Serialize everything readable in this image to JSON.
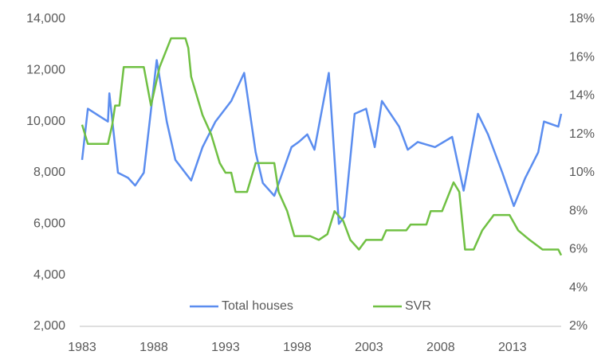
{
  "chart_data": {
    "type": "line",
    "series": [
      {
        "name": "Total houses",
        "color": "#5b8def",
        "axis": "y",
        "x": [
          1983.0,
          1983.4,
          1984.8,
          1984.9,
          1985.5,
          1986.2,
          1986.7,
          1987.3,
          1988.2,
          1988.9,
          1989.5,
          1990.6,
          1991.4,
          1992.3,
          1993.4,
          1994.3,
          1995.1,
          1995.6,
          1996.4,
          1997.6,
          1998.1,
          1998.7,
          1999.2,
          2000.2,
          2000.9,
          2001.3,
          2002.0,
          2002.8,
          2003.4,
          2003.9,
          2005.1,
          2005.7,
          2006.4,
          2007.6,
          2008.8,
          2009.6,
          2010.6,
          2011.3,
          2012.3,
          2013.1,
          2013.9,
          2014.8,
          2015.2,
          2016.2,
          2016.4
        ],
        "values": [
          8500,
          10500,
          10000,
          11100,
          8000,
          7800,
          7500,
          8000,
          12400,
          10000,
          8500,
          7700,
          9000,
          10000,
          10800,
          11900,
          8800,
          7600,
          7100,
          9000,
          9200,
          9500,
          8900,
          11900,
          6000,
          6300,
          10300,
          10500,
          9000,
          10800,
          9800,
          8900,
          9200,
          9000,
          9400,
          7300,
          10300,
          9500,
          8000,
          6700,
          7800,
          8800,
          10000,
          9800,
          10300
        ]
      },
      {
        "name": "SVR",
        "color": "#70c043",
        "axis": "y2",
        "x": [
          1983.0,
          1983.4,
          1984.8,
          1985.1,
          1985.3,
          1985.6,
          1985.9,
          1987.3,
          1987.8,
          1988.4,
          1989.2,
          1990.2,
          1990.4,
          1990.6,
          1991.4,
          1992.0,
          1992.6,
          1993.0,
          1993.4,
          1993.7,
          1994.5,
          1995.1,
          1996.4,
          1996.7,
          1997.3,
          1997.8,
          1998.9,
          1999.5,
          2000.1,
          2000.6,
          2001.2,
          2001.7,
          2002.3,
          2002.8,
          2003.9,
          2004.2,
          2005.6,
          2005.9,
          2007.0,
          2007.3,
          2008.1,
          2008.9,
          2009.3,
          2009.7,
          2010.3,
          2010.9,
          2011.7,
          2012.8,
          2013.4,
          2014.2,
          2015.1,
          2016.2,
          2016.4
        ],
        "values": [
          12.5,
          11.5,
          11.5,
          12.5,
          13.5,
          13.5,
          15.5,
          15.5,
          13.5,
          15.5,
          17,
          17,
          16.5,
          15,
          13,
          12,
          10.5,
          10,
          10,
          9,
          9,
          10.5,
          10.5,
          9,
          8,
          6.7,
          6.7,
          6.5,
          6.8,
          8,
          7.5,
          6.5,
          6,
          6.5,
          6.5,
          7,
          7,
          7.3,
          7.3,
          8,
          8,
          9.5,
          9,
          6,
          6,
          7,
          7.8,
          7.8,
          7,
          6.5,
          6,
          6,
          5.7
        ]
      }
    ],
    "xlim": [
      1983,
      2016.4
    ],
    "xticks": [
      1983,
      1988,
      1993,
      1998,
      2003,
      2008,
      2013
    ],
    "ylim": [
      2000,
      14000
    ],
    "yticks": [
      {
        "value": 2000,
        "label": "2,000"
      },
      {
        "value": 4000,
        "label": "4,000"
      },
      {
        "value": 6000,
        "label": "6,000"
      },
      {
        "value": 8000,
        "label": "8,000"
      },
      {
        "value": 10000,
        "label": "10,000"
      },
      {
        "value": 12000,
        "label": "12,000"
      },
      {
        "value": 14000,
        "label": "14,000"
      }
    ],
    "y2lim": [
      2,
      18
    ],
    "y2ticks": [
      {
        "value": 2,
        "label": "2%"
      },
      {
        "value": 4,
        "label": "4%"
      },
      {
        "value": 6,
        "label": "6%"
      },
      {
        "value": 8,
        "label": "8%"
      },
      {
        "value": 10,
        "label": "10%"
      },
      {
        "value": 12,
        "label": "12%"
      },
      {
        "value": 14,
        "label": "14%"
      },
      {
        "value": 16,
        "label": "16%"
      },
      {
        "value": 18,
        "label": "18%"
      }
    ],
    "grid": false,
    "legend": "bottom"
  }
}
